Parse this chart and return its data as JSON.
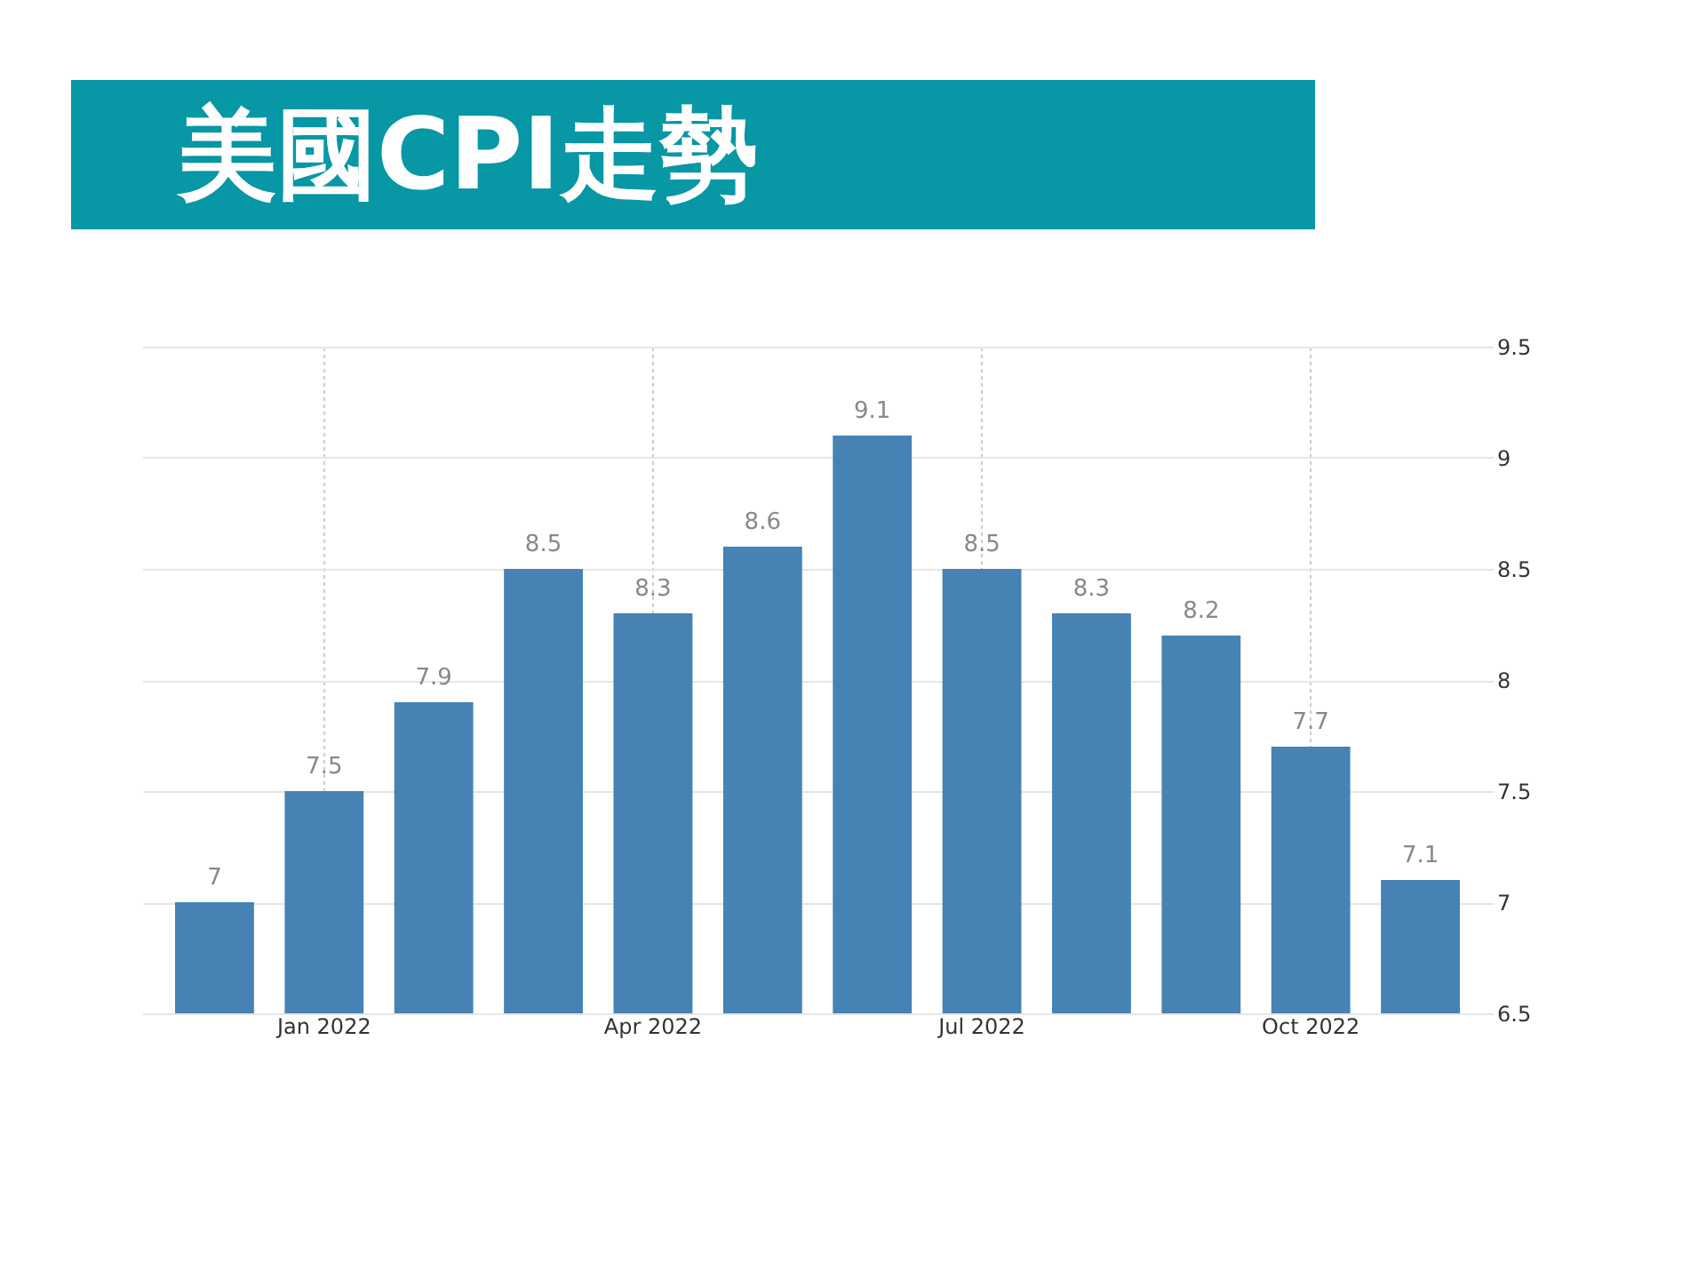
{
  "chart_data": {
    "type": "bar",
    "title": "美國CPI走勢",
    "categories": [
      null,
      "Jan 2022",
      null,
      null,
      "Apr 2022",
      null,
      null,
      "Jul 2022",
      null,
      null,
      "Oct 2022",
      null
    ],
    "values": [
      7,
      7.5,
      7.9,
      8.5,
      8.3,
      8.6,
      9.1,
      8.5,
      8.3,
      8.2,
      7.7,
      7.1
    ],
    "color": "#4682b4",
    "ylim": [
      6.5,
      9.5
    ],
    "yticks": [
      6.5,
      7,
      7.5,
      8,
      8.5,
      9,
      9.5
    ],
    "grid": true,
    "data_labels": true
  }
}
